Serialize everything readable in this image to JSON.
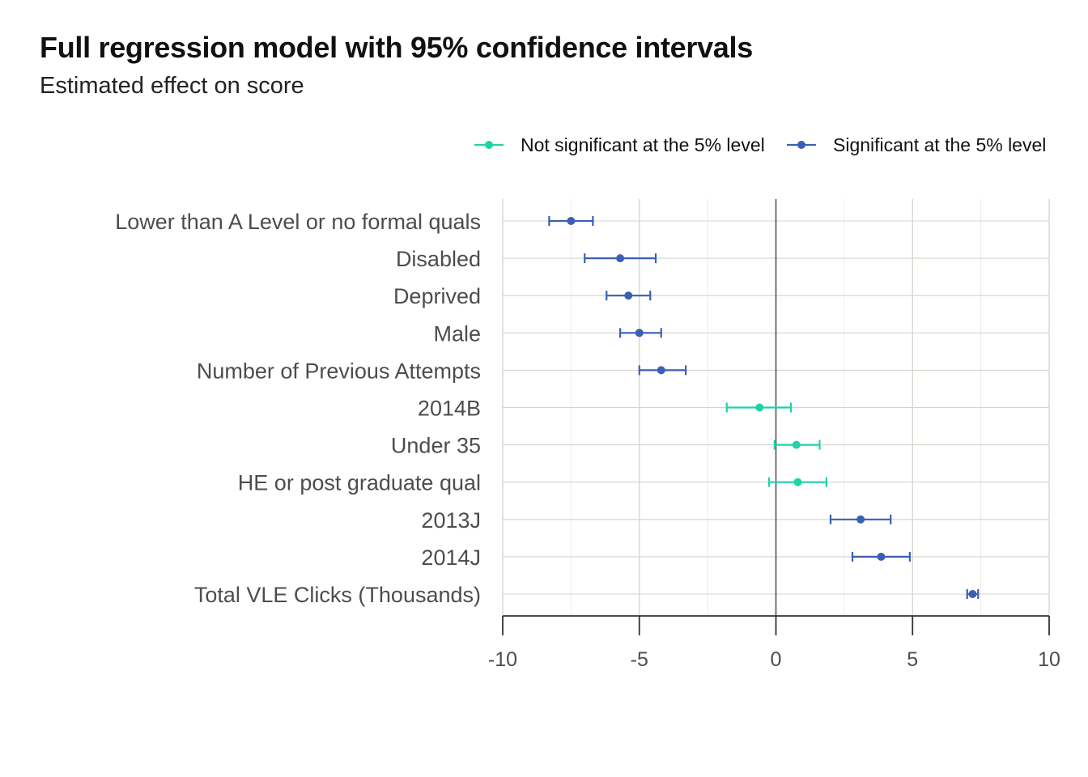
{
  "chart_data": {
    "type": "scatter",
    "title": "Full regression model with 95% confidence intervals",
    "subtitle": "Estimated effect on score",
    "xlabel": "",
    "ylabel": "",
    "xlim": [
      -10,
      10
    ],
    "x_ticks": [
      -10,
      -5,
      0,
      5,
      10
    ],
    "grid": true,
    "reference_line_x": 0,
    "legend_position": "top-right",
    "colors": {
      "not_significant": "#1fd3a8",
      "significant": "#3a5fb5",
      "zero_line": "#666666",
      "grid": "#d4d4cc"
    },
    "legend": [
      {
        "key": "not_significant",
        "label": "Not significant at the 5% level"
      },
      {
        "key": "significant",
        "label": "Significant at the 5% level"
      }
    ],
    "categories": [
      "Lower than A Level or no formal quals",
      "Disabled",
      "Deprived",
      "Male",
      "Number of Previous Attempts",
      "2014B",
      "Under 35",
      "HE or post graduate qual",
      "2013J",
      "2014J",
      "Total VLE Clicks (Thousands)"
    ],
    "estimates": [
      {
        "estimate": -7.5,
        "lower": -8.3,
        "upper": -6.7,
        "group": "significant"
      },
      {
        "estimate": -5.7,
        "lower": -7.0,
        "upper": -4.4,
        "group": "significant"
      },
      {
        "estimate": -5.4,
        "lower": -6.2,
        "upper": -4.6,
        "group": "significant"
      },
      {
        "estimate": -5.0,
        "lower": -5.7,
        "upper": -4.2,
        "group": "significant"
      },
      {
        "estimate": -4.2,
        "lower": -5.0,
        "upper": -3.3,
        "group": "significant"
      },
      {
        "estimate": -0.6,
        "lower": -1.8,
        "upper": 0.55,
        "group": "not_significant"
      },
      {
        "estimate": 0.75,
        "lower": -0.05,
        "upper": 1.6,
        "group": "not_significant"
      },
      {
        "estimate": 0.8,
        "lower": -0.25,
        "upper": 1.85,
        "group": "not_significant"
      },
      {
        "estimate": 3.1,
        "lower": 2.0,
        "upper": 4.2,
        "group": "significant"
      },
      {
        "estimate": 3.85,
        "lower": 2.8,
        "upper": 4.9,
        "group": "significant"
      },
      {
        "estimate": 7.2,
        "lower": 7.0,
        "upper": 7.4,
        "group": "significant"
      }
    ]
  }
}
